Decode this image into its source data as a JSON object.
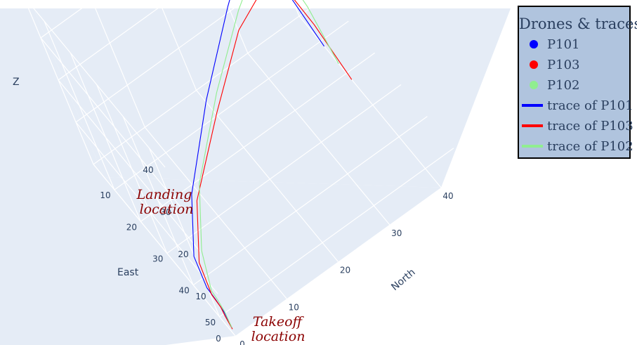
{
  "chart_data": {
    "type": "scatter3d",
    "title": "",
    "axes": {
      "x": {
        "label": "North",
        "ticks": [
          0,
          10,
          20,
          30,
          40
        ]
      },
      "y": {
        "label": "East",
        "ticks": [
          10,
          20,
          30,
          40,
          50
        ]
      },
      "z": {
        "label": "Z",
        "ticks": [
          0,
          10,
          20,
          30,
          40
        ]
      }
    },
    "legend": {
      "title": "Drones & traces",
      "position": "top-right",
      "bgcolor": "#b0c4de",
      "bordercolor": "#000000"
    },
    "markers": [
      {
        "name": "P101",
        "color": "#0000ff",
        "north": 35.0,
        "east": 9.2,
        "z": 26.8
      },
      {
        "name": "P103",
        "color": "#ff0000",
        "north": 35.0,
        "east": 19.0,
        "z": 27.0
      },
      {
        "name": "P102",
        "color": "#90ee90",
        "north": 35.0,
        "east": 14.0,
        "z": 27.0
      }
    ],
    "series": [
      {
        "name": "trace of P101",
        "color": "#0000ff",
        "points": [
          [
            0.0,
            56.0,
            2.0
          ],
          [
            0.4,
            53.0,
            3.0
          ],
          [
            0.6,
            49.5,
            3.2
          ],
          [
            0.8,
            45.5,
            2.8
          ],
          [
            1.5,
            42.0,
            7.0
          ],
          [
            6.0,
            37.0,
            14.0
          ],
          [
            16.0,
            27.0,
            20.0
          ],
          [
            27.0,
            17.0,
            25.0
          ],
          [
            35.0,
            9.2,
            26.8
          ],
          [
            37.0,
            7.8,
            29.0
          ],
          [
            38.6,
            7.9,
            29.4
          ],
          [
            50.0,
            17.0,
            36.0
          ],
          [
            49.5,
            15.8,
            35.2
          ],
          [
            41.0,
            9.0,
            30.5
          ],
          [
            42.0,
            8.5,
            32.0
          ],
          [
            45.0,
            8.0,
            33.0
          ],
          [
            35.8,
            9.5,
            26.4
          ],
          [
            38.0,
            10.5,
            14.0
          ],
          [
            40.0,
            11.5,
            0.0
          ]
        ]
      },
      {
        "name": "trace of P103",
        "color": "#ff0000",
        "points": [
          [
            0.0,
            56.0,
            1.6
          ],
          [
            0.2,
            53.5,
            2.6
          ],
          [
            0.5,
            51.5,
            3.0
          ],
          [
            0.6,
            48.0,
            3.2
          ],
          [
            1.5,
            44.0,
            7.0
          ],
          [
            6.0,
            39.0,
            14.0
          ],
          [
            16.0,
            31.0,
            20.0
          ],
          [
            26.0,
            23.0,
            24.8
          ],
          [
            35.0,
            19.0,
            27.0
          ],
          [
            40.0,
            24.0,
            31.0
          ],
          [
            45.0,
            27.0,
            33.5
          ],
          [
            46.0,
            28.5,
            35.0
          ],
          [
            44.0,
            27.0,
            34.0
          ],
          [
            35.5,
            19.4,
            26.8
          ],
          [
            38.0,
            21.0,
            14.0
          ],
          [
            40.0,
            22.0,
            0.0
          ]
        ]
      },
      {
        "name": "trace of P102",
        "color": "#90ee90",
        "points": [
          [
            0.0,
            56.0,
            2.0
          ],
          [
            0.5,
            53.0,
            3.0
          ],
          [
            0.8,
            50.0,
            3.2
          ],
          [
            1.0,
            47.0,
            3.0
          ],
          [
            3.0,
            42.0,
            7.0
          ],
          [
            8.0,
            36.0,
            14.0
          ],
          [
            18.0,
            27.0,
            20.0
          ],
          [
            28.0,
            19.0,
            24.8
          ],
          [
            35.0,
            14.0,
            27.0
          ],
          [
            43.0,
            19.5,
            33.0
          ],
          [
            47.0,
            23.0,
            36.0
          ],
          [
            46.5,
            22.0,
            35.4
          ],
          [
            45.0,
            21.0,
            33.0
          ],
          [
            36.5,
            15.0,
            27.2
          ],
          [
            37.5,
            15.6,
            24.8
          ],
          [
            39.0,
            16.5,
            14.0
          ],
          [
            40.0,
            17.0,
            0.0
          ]
        ]
      }
    ],
    "annotations": [
      {
        "text": "Landing location",
        "lines": [
          "Landing",
          "location"
        ]
      },
      {
        "text": "Takeoff location",
        "lines": [
          "Takeoff",
          "location"
        ]
      }
    ]
  }
}
